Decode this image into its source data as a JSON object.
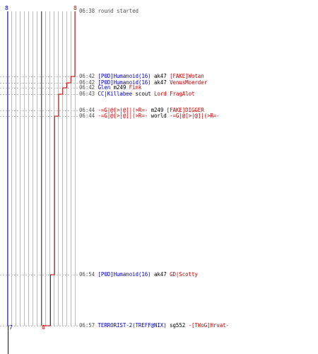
{
  "scores": {
    "blue_top": "8",
    "red_top": "8",
    "blue_bottom": "7",
    "red_bottom": "0"
  },
  "colors": {
    "blue_team": "#0000cc",
    "red_team": "#cc0000",
    "grid": "#bbbbbb",
    "center_line": "#666666"
  },
  "log": [
    {
      "time": "06:38",
      "parts": [
        {
          "text": "round started",
          "color": "gray"
        }
      ]
    },
    {
      "time": "06:42",
      "parts": [
        {
          "text": "[P0D]Humanoid(16)",
          "color": "blue"
        },
        {
          "text": " ak47 ",
          "color": "black"
        },
        {
          "text": "[FAKE]Wotan",
          "color": "red"
        }
      ]
    },
    {
      "time": "06:42",
      "parts": [
        {
          "text": "[P0D]Humanoid(16)",
          "color": "blue"
        },
        {
          "text": " ak47 ",
          "color": "black"
        },
        {
          "text": "VenusMoerder",
          "color": "red"
        }
      ]
    },
    {
      "time": "06:42",
      "parts": [
        {
          "text": "Glen",
          "color": "blue"
        },
        {
          "text": " m249 ",
          "color": "black"
        },
        {
          "text": "Fink",
          "color": "red"
        }
      ]
    },
    {
      "time": "06:43",
      "parts": [
        {
          "text": "CC|Killabee",
          "color": "blue"
        },
        {
          "text": " scout ",
          "color": "black"
        },
        {
          "text": "Lord FragAlot",
          "color": "red"
        }
      ]
    },
    {
      "time": "06:44",
      "parts": [
        {
          "text": "-=G|@[>|@]|(>R=-",
          "color": "red"
        },
        {
          "text": " m249 ",
          "color": "black"
        },
        {
          "text": "[FAKE]DIGGER",
          "color": "red"
        }
      ]
    },
    {
      "time": "06:44",
      "parts": [
        {
          "text": "-=G|@[>|@]|(>R=-",
          "color": "red"
        },
        {
          "text": " world ",
          "color": "black"
        },
        {
          "text": "-=G|@[>|@]|(>R=-",
          "color": "red"
        }
      ]
    },
    {
      "time": "06:54",
      "parts": [
        {
          "text": "[P0D]Humanoid(16)",
          "color": "blue"
        },
        {
          "text": " ak47 ",
          "color": "black"
        },
        {
          "text": "GD|Scotty",
          "color": "red"
        }
      ]
    },
    {
      "time": "06:57",
      "parts": [
        {
          "text": "TERRORIST-2(TREFF@NIX)",
          "color": "blue"
        },
        {
          "text": " sg552 ",
          "color": "black"
        },
        {
          "text": "-[TWoG]Hrvat-",
          "color": "red"
        }
      ]
    }
  ],
  "chart_data": {
    "type": "step",
    "x": [
      "06:38",
      "06:42",
      "06:42",
      "06:42",
      "06:43",
      "06:44",
      "06:44",
      "06:54",
      "06:57"
    ],
    "series": [
      {
        "values": [
          8,
          8,
          8,
          8,
          8,
          8,
          8,
          8,
          7
        ]
      },
      {
        "values": [
          8,
          7,
          6,
          5,
          4,
          4,
          3,
          2,
          0
        ]
      }
    ],
    "ylim": [
      0,
      8
    ],
    "grid": true
  }
}
